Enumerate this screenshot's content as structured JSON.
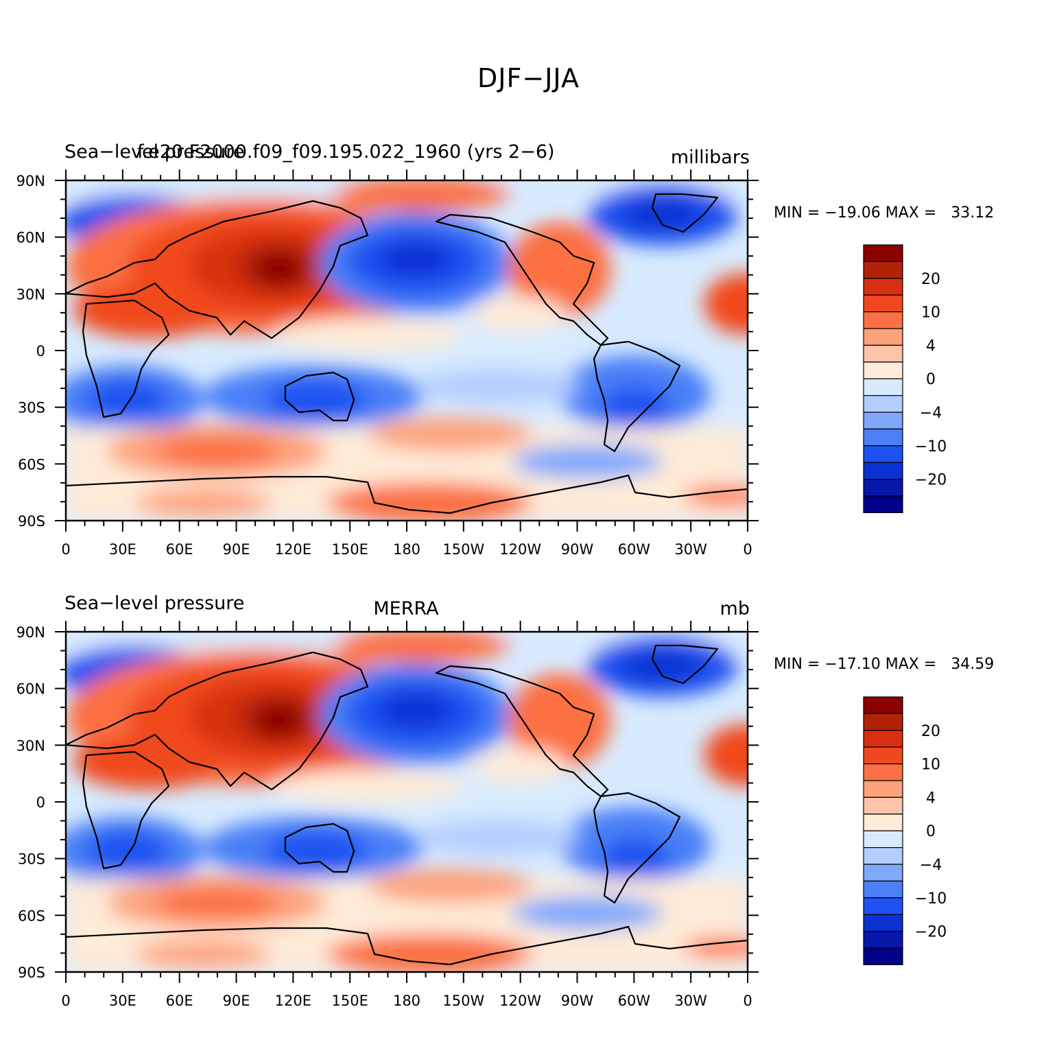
{
  "title": "DJF−JJA",
  "lat_ticks": [
    "90N",
    "60N",
    "30N",
    "0",
    "30S",
    "60S",
    "90S"
  ],
  "lon_ticks": [
    "0",
    "30E",
    "60E",
    "90E",
    "120E",
    "150E",
    "180",
    "150W",
    "120W",
    "90W",
    "60W",
    "30W",
    "0"
  ],
  "colorbar": {
    "labels": [
      "20",
      "10",
      "4",
      "0",
      "−4",
      "−10",
      "−20"
    ],
    "colors": [
      "#8b0000",
      "#b22207",
      "#d63010",
      "#f0481e",
      "#fc7043",
      "#fda27c",
      "#fdc4aa",
      "#feebd8",
      "#d8ebfe",
      "#b3cefe",
      "#7fa8fb",
      "#4a7ff7",
      "#1f52f0",
      "#0a32d2",
      "#0718a9",
      "#00008b"
    ]
  },
  "panels": [
    {
      "left_title": "Sea−level pressure",
      "center_title": "f.e20.F2000.f09_f09.195.022_1960 (yrs 2−6)",
      "units": "millibars",
      "min_max": "MIN = −19.06 MAX =   33.12",
      "min": -19.06,
      "max": 33.12
    },
    {
      "left_title": "Sea−level pressure",
      "center_title": "MERRA",
      "units": "mb",
      "min_max": "MIN = −17.10 MAX =   34.59",
      "min": -17.1,
      "max": 34.59
    }
  ]
}
